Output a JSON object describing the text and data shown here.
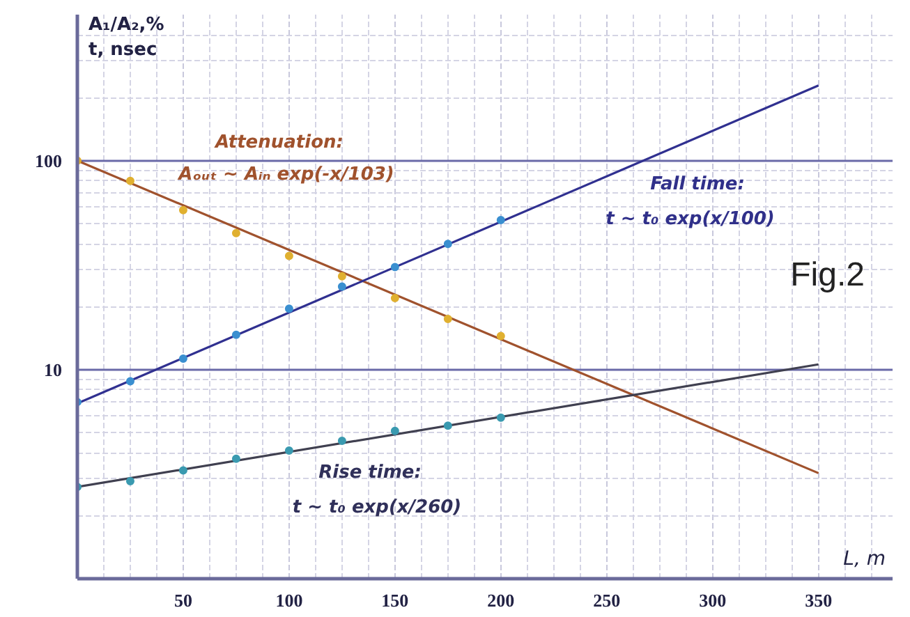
{
  "chart_data": {
    "type": "scatter",
    "xlabel": "L, m",
    "ylabel": "A₁/A₂,%\nt, nsec",
    "log": "y",
    "grid": true,
    "marker": "circle",
    "xlim": [
      0,
      385
    ],
    "ylim": [
      1,
      500
    ],
    "xticks": [
      50,
      100,
      150,
      200,
      250,
      300,
      350
    ],
    "yticks": [
      10,
      100
    ],
    "series": [
      {
        "type": "line",
        "marker": "none",
        "color": "#a0522d",
        "x": [
          0,
          350
        ],
        "values": [
          100,
          3.2
        ]
      },
      {
        "type": "line",
        "marker": "none",
        "color": "#303090",
        "x": [
          0,
          350
        ],
        "values": [
          6.9,
          229
        ]
      },
      {
        "type": "line",
        "marker": "none",
        "color": "#404050",
        "x": [
          0,
          350
        ],
        "values": [
          2.75,
          10.6
        ]
      },
      {
        "color": "#e0b030",
        "x": [
          0,
          25,
          50,
          75,
          100,
          125,
          150,
          175,
          200
        ],
        "values": [
          100,
          80,
          58,
          45,
          35,
          28,
          22,
          17.5,
          14.5
        ]
      },
      {
        "color": "#3a8fd0",
        "x": [
          0,
          25,
          50,
          75,
          100,
          125,
          150,
          175,
          200
        ],
        "values": [
          7,
          8.8,
          11.3,
          14.7,
          19.6,
          25,
          31,
          40,
          52
        ]
      },
      {
        "color": "#3a9ab0",
        "x": [
          0,
          25,
          50,
          75,
          100,
          125,
          150,
          175,
          200
        ],
        "values": [
          2.75,
          2.93,
          3.3,
          3.75,
          4.1,
          4.57,
          5.1,
          5.4,
          5.9
        ]
      }
    ],
    "annotations": [
      "Attenuation:",
      "Aₒᵤₜ ~ Aᵢₙ exp(-x/103)",
      "Fall time:",
      "t ~ t₀  exp(x/100)",
      "Rise time:",
      "t ~ t₀ exp(x/260)",
      "Fig.2"
    ]
  }
}
